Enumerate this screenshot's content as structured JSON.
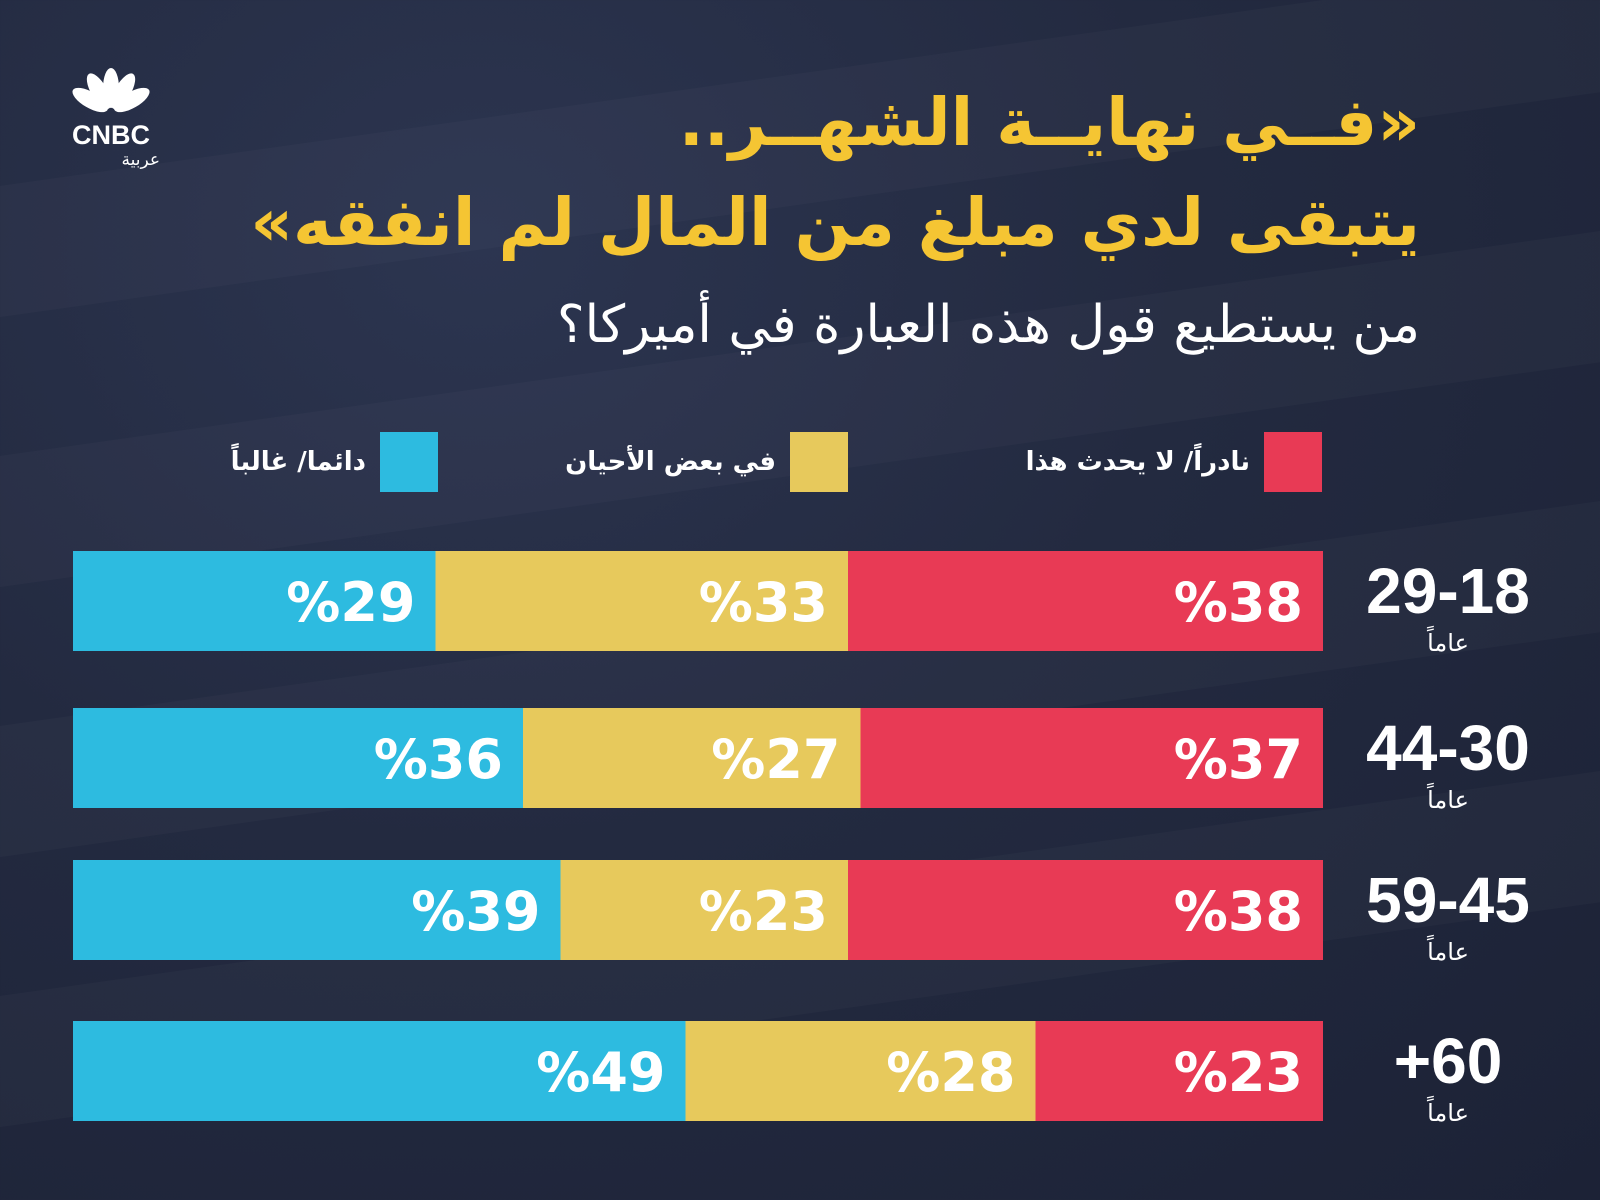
{
  "logo": {
    "brand": "CNBC",
    "sub": "عربية"
  },
  "headline": {
    "line1": "«فــي نهايــة الشهــر..",
    "line2": "يتبقى لدي مبلغ من المال لم انفقه»",
    "question": "من يستطيع قول هذه العبارة في أميركا؟"
  },
  "colors": {
    "rarely": "#e83a55",
    "sometimes": "#e7c95c",
    "always": "#2dbbe0",
    "title": "#f5c533"
  },
  "chart_data": {
    "type": "bar",
    "orientation": "horizontal-stacked",
    "title": "من يستطيع قول هذه العبارة في أميركا؟",
    "categories": [
      "29-18",
      "44-30",
      "59-45",
      "+60"
    ],
    "category_unit": "عاماً",
    "series": [
      {
        "name": "نادراً/ لا يحدث هذا",
        "key": "rarely",
        "values": [
          38,
          37,
          38,
          23
        ],
        "labels": [
          "%38",
          "%37",
          "%38",
          "%23"
        ]
      },
      {
        "name": "في بعض الأحيان",
        "key": "sometimes",
        "values": [
          33,
          27,
          23,
          28
        ],
        "labels": [
          "%33",
          "%27",
          "%23",
          "%28"
        ]
      },
      {
        "name": "دائما/ غالباً",
        "key": "always",
        "values": [
          29,
          36,
          39,
          49
        ],
        "labels": [
          "%29",
          "%36",
          "%39",
          "%49"
        ]
      }
    ],
    "xlim": [
      0,
      100
    ],
    "legend": "top"
  }
}
